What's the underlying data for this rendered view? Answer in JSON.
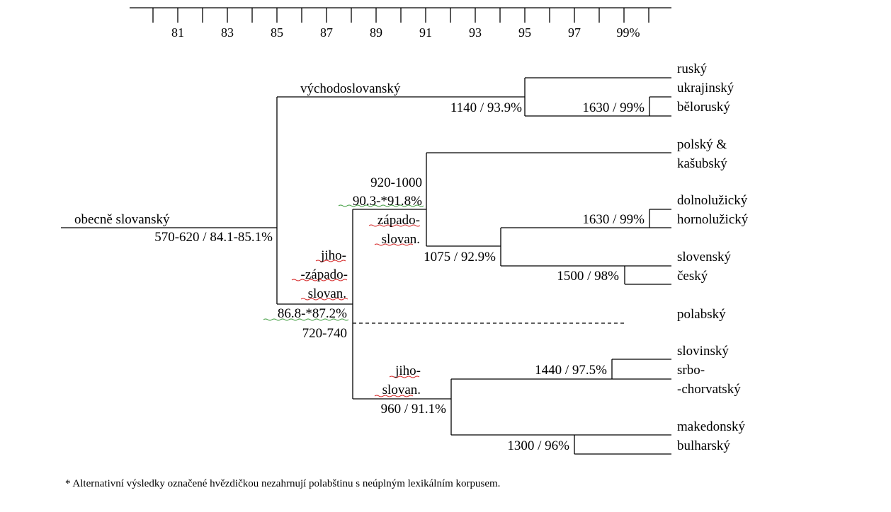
{
  "axis": {
    "ticks": [
      "81",
      "83",
      "85",
      "87",
      "89",
      "91",
      "93",
      "95",
      "97",
      "99%"
    ]
  },
  "branches": {
    "root": {
      "name": "obecně slovanský",
      "value": "570-620 / 84.1-85.1%"
    },
    "east": {
      "name": "východoslovanský",
      "value": "1140 / 93.9%"
    },
    "east_sub": {
      "value": "1630 / 99%"
    },
    "southwest": {
      "name_lines": [
        "jiho-",
        "-západo-",
        "slovan."
      ],
      "value_line1": "86.8-*87.2%",
      "value_line2": "720-740"
    },
    "west": {
      "name_lines": [
        "západo-",
        "slovan."
      ],
      "value_line1": "920-1000",
      "value_line2": "90.3-*91.8%"
    },
    "lusatian": {
      "value": "1630 / 99%"
    },
    "west_inner": {
      "value": "1075 / 92.9%"
    },
    "czechoslovak": {
      "value": "1500 / 98%"
    },
    "south": {
      "name_lines": [
        "jiho-",
        "slovan."
      ],
      "value": "960 / 91.1%"
    },
    "south_west": {
      "value": "1440 / 97.5%"
    },
    "south_east": {
      "value": "1300 / 96%"
    }
  },
  "languages": [
    "ruský",
    "ukrajinský",
    "běloruský",
    "polský &",
    "kašubský",
    "dolnolužický",
    "hornolužický",
    "slovenský",
    "český",
    "polabský",
    "slovinský",
    "srbo-",
    "-chorvatský",
    "makedonský",
    "bulharský"
  ],
  "footnote": "* Alternativní výsledky označené hvězdičkou nezahrnují polabštinu s neúplným lexikálním korpusem."
}
